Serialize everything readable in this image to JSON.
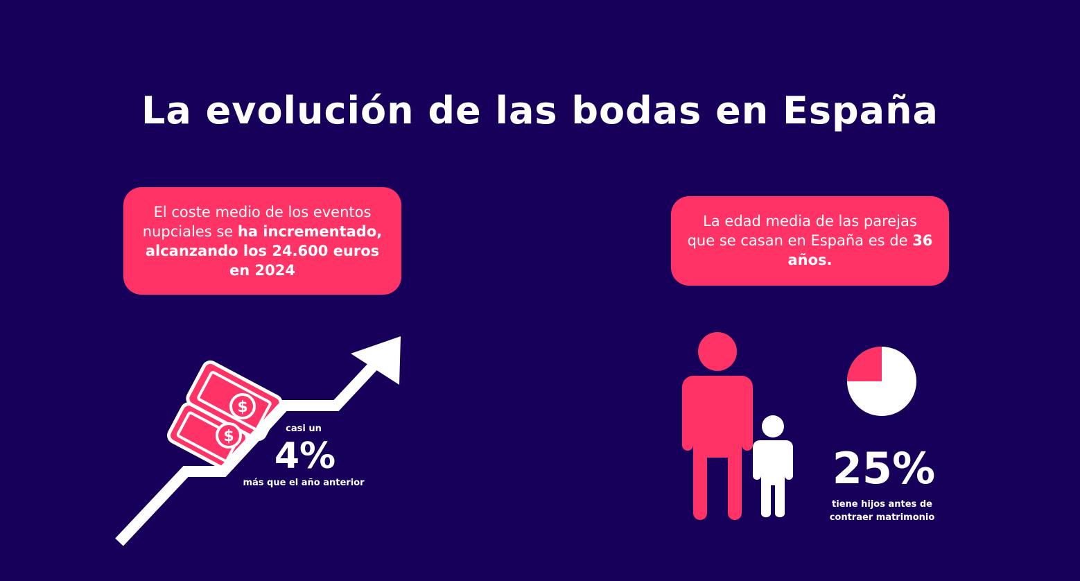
{
  "title": "La evolución de las bodas en España",
  "colors": {
    "background": "#16005a",
    "accent": "#ff3366",
    "text": "#ffffff"
  },
  "cost_card": {
    "line1": "El coste medio de los eventos",
    "line2_prefix": "nupciales se ",
    "line2_bold": "ha incrementado,",
    "line3_bold": "alcanzando los 24.600 euros",
    "line4_bold": "en 2024"
  },
  "age_card": {
    "line1": "La edad media de las parejas",
    "line2_prefix": "que se casan en España es de ",
    "line2_bold": "36",
    "line3_bold": "años."
  },
  "growth_stat": {
    "prefix": "casi un",
    "value": "4%",
    "suffix": "más que el año anterior",
    "icons": [
      "money-bill-icon",
      "dollar-coin-icon",
      "trend-up-arrow-icon"
    ]
  },
  "children_stat": {
    "value": "25%",
    "fraction": 0.25,
    "line1": "tiene hijos antes de",
    "line2": "contraer matrimonio",
    "icons": [
      "adult-person-icon",
      "child-person-icon",
      "pie-chart-icon"
    ]
  }
}
